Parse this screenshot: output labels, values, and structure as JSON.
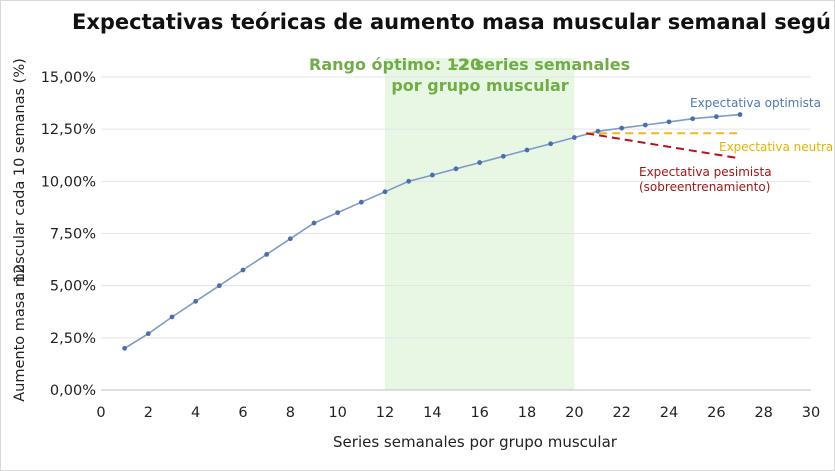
{
  "chart_data": {
    "type": "line",
    "title": "Expectativas teóricas de aumento masa muscular semanal segú",
    "xlabel": "Series semanales por grupo muscular",
    "ylabel": "Aumento masa muscular cada 10 semanas (%)",
    "ylabel_overlap": "12",
    "xlim": [
      0,
      30
    ],
    "ylim": [
      0,
      0.15
    ],
    "x_ticks": [
      "0",
      "2",
      "4",
      "6",
      "8",
      "10",
      "12",
      "14",
      "16",
      "18",
      "20",
      "22",
      "24",
      "26",
      "28",
      "30"
    ],
    "y_ticks": [
      "0,00%",
      "2,50%",
      "5,00%",
      "7,50%",
      "10,00%",
      "12,50%",
      "15,00%"
    ],
    "grid": "horizontal",
    "shaded_range": {
      "x": [
        12,
        20
      ],
      "label_line1": "Rango óptimo: 12",
      "label_overlap": "–20",
      "label_line1_rest": " series semanales",
      "label_line2": "por grupo muscular"
    },
    "series": [
      {
        "name": "Expectativa optimista",
        "style": "solid-markers",
        "color": "#7f9bc8",
        "label_color": "#4a7ab5",
        "x": [
          1,
          2,
          3,
          4,
          5,
          6,
          7,
          8,
          9,
          10,
          11,
          12,
          13,
          14,
          15,
          16,
          17,
          18,
          19,
          20,
          21,
          22,
          23,
          24,
          25,
          26,
          27
        ],
        "y": [
          0.02,
          0.027,
          0.035,
          0.0425,
          0.05,
          0.0575,
          0.065,
          0.0725,
          0.08,
          0.085,
          0.09,
          0.095,
          0.1,
          0.103,
          0.106,
          0.109,
          0.112,
          0.115,
          0.118,
          0.121,
          0.124,
          0.1255,
          0.127,
          0.1285,
          0.13,
          0.131,
          0.132
        ]
      },
      {
        "name": "Expectativa neutra",
        "style": "dashed",
        "color": "#f2b81e",
        "label_color": "#e5b400",
        "x": [
          20.5,
          27
        ],
        "y": [
          0.123,
          0.123
        ]
      },
      {
        "name": "Expectativa pesimista",
        "name_line2": "(sobreentrenamiento)",
        "style": "dashed",
        "color": "#b3141c",
        "label_color": "#a31515",
        "x": [
          20.5,
          27
        ],
        "y": [
          0.123,
          0.111
        ]
      }
    ]
  }
}
